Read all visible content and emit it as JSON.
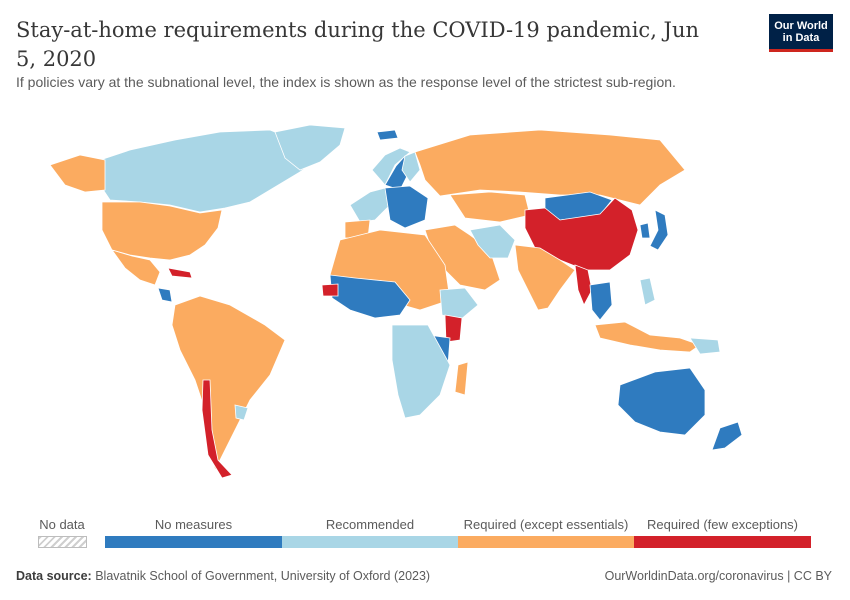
{
  "header": {
    "title": "Stay-at-home requirements during the COVID-19 pandemic, Jun 5, 2020",
    "subtitle": "If policies vary at the subnational level, the index is shown as the response level of the strictest sub-region."
  },
  "logo": {
    "line1": "Our World",
    "line2": "in Data"
  },
  "colors": {
    "no_data": "#e6e6e6",
    "no_measures": "#2f7bbf",
    "recommended": "#a9d6e6",
    "required_except_essentials": "#fbab60",
    "required_few_exceptions": "#d3212a"
  },
  "legend": {
    "no_data": "No data",
    "no_measures": "No measures",
    "recommended": "Recommended",
    "required_except": "Required (except essentials)",
    "required_few": "Required (few exceptions)"
  },
  "footer": {
    "source_label": "Data source:",
    "source_text": "Blavatnik School of Government, University of Oxford (2023)",
    "link": "OurWorldinData.org/coronavirus | CC BY"
  },
  "regions": [
    {
      "name": "Canada",
      "level": "recommended"
    },
    {
      "name": "Greenland",
      "level": "recommended"
    },
    {
      "name": "United States",
      "level": "required_except_essentials"
    },
    {
      "name": "Alaska",
      "level": "required_except_essentials"
    },
    {
      "name": "Mexico",
      "level": "required_except_essentials"
    },
    {
      "name": "Cuba",
      "level": "required_few_exceptions"
    },
    {
      "name": "Nicaragua",
      "level": "no_measures"
    },
    {
      "name": "South America",
      "level": "required_except_essentials"
    },
    {
      "name": "Chile",
      "level": "required_few_exceptions"
    },
    {
      "name": "Uruguay",
      "level": "recommended"
    },
    {
      "name": "Iceland",
      "level": "no_measures"
    },
    {
      "name": "Norway",
      "level": "recommended"
    },
    {
      "name": "Sweden",
      "level": "no_measures"
    },
    {
      "name": "Finland",
      "level": "recommended"
    },
    {
      "name": "Western Europe",
      "level": "recommended"
    },
    {
      "name": "Central Europe",
      "level": "no_measures"
    },
    {
      "name": "Spain",
      "level": "required_except_essentials"
    },
    {
      "name": "Russia",
      "level": "required_except_essentials"
    },
    {
      "name": "Kazakhstan",
      "level": "required_except_essentials"
    },
    {
      "name": "Mongolia",
      "level": "no_measures"
    },
    {
      "name": "China",
      "level": "required_few_exceptions"
    },
    {
      "name": "Japan",
      "level": "no_measures"
    },
    {
      "name": "South Korea",
      "level": "no_measures"
    },
    {
      "name": "Iran",
      "level": "recommended"
    },
    {
      "name": "Middle East",
      "level": "required_except_essentials"
    },
    {
      "name": "India",
      "level": "required_except_essentials"
    },
    {
      "name": "Myanmar",
      "level": "required_few_exceptions"
    },
    {
      "name": "Thailand",
      "level": "no_measures"
    },
    {
      "name": "Indonesia",
      "level": "required_except_essentials"
    },
    {
      "name": "Philippines",
      "level": "recommended"
    },
    {
      "name": "Papua New Guinea",
      "level": "recommended"
    },
    {
      "name": "North Africa",
      "level": "required_except_essentials"
    },
    {
      "name": "West Africa",
      "level": "no_measures"
    },
    {
      "name": "Senegal",
      "level": "required_few_exceptions"
    },
    {
      "name": "Ethiopia",
      "level": "recommended"
    },
    {
      "name": "Kenya",
      "level": "required_few_exceptions"
    },
    {
      "name": "Tanzania",
      "level": "no_measures"
    },
    {
      "name": "Southern Africa",
      "level": "recommended"
    },
    {
      "name": "Madagascar",
      "level": "required_except_essentials"
    },
    {
      "name": "Australia",
      "level": "no_measures"
    },
    {
      "name": "New Zealand",
      "level": "no_measures"
    }
  ]
}
